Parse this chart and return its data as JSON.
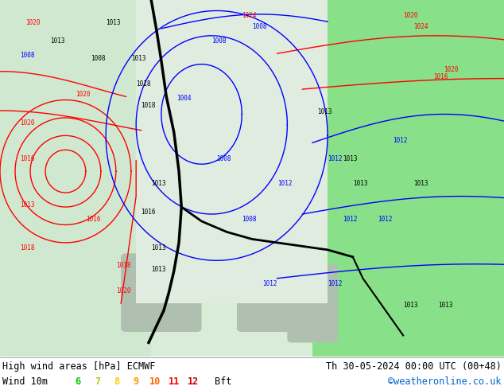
{
  "title_left": "High wind areas [hPa] ECMWF",
  "title_right": "Th 30-05-2024 00:00 UTC (00+48)",
  "subtitle_left": "Wind 10m",
  "bft_label": "Bft",
  "bft_numbers": [
    "6",
    "7",
    "8",
    "9",
    "10",
    "11",
    "12"
  ],
  "bft_colors": [
    "#00cc00",
    "#aacc00",
    "#ffcc00",
    "#ff9900",
    "#ff6600",
    "#ff0000",
    "#cc0000"
  ],
  "credit": "©weatheronline.co.uk",
  "credit_color": "#0066cc",
  "land_color": "#c8e8c8",
  "bottom_bar_color": "#ffffff",
  "figsize": [
    6.34,
    4.9
  ],
  "dpi": 100
}
